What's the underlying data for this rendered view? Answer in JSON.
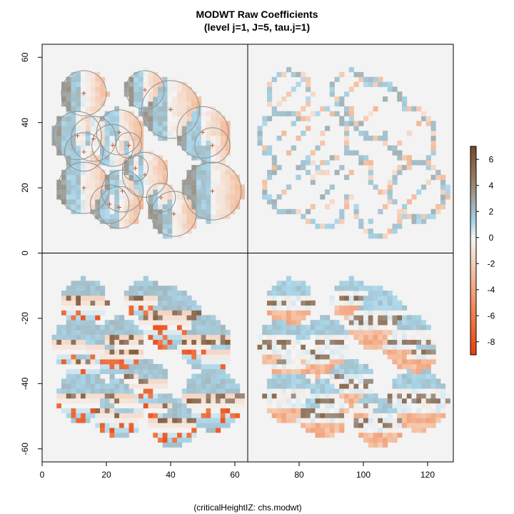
{
  "header": {
    "title": "MODWT Raw Coefficients",
    "subtitle": "(level j=1, J=5, tau.j=1)"
  },
  "footer": {
    "caption": "(criticalHeightIZ: chs.modwt)"
  },
  "chart_data": {
    "type": "heatmap",
    "title": "MODWT Raw Coefficients",
    "subtitle": "(level j=1, J=5, tau.j=1)",
    "caption": "(criticalHeightIZ: chs.modwt)",
    "xlabel": "",
    "ylabel": "",
    "xlim": [
      0,
      128
    ],
    "ylim": [
      -64,
      64
    ],
    "x_ticks": [
      0,
      20,
      40,
      60,
      80,
      100,
      120
    ],
    "y_ticks": [
      60,
      40,
      20,
      0,
      -20,
      -40,
      -60
    ],
    "grid": false,
    "dividers": {
      "x": 64,
      "y": 0
    },
    "quadrants": [
      {
        "position": "top-left",
        "content": "raw coefficient image with tree crown circles and crown centre markers"
      },
      {
        "position": "top-right",
        "content": "sparse diagonal detail coefficients"
      },
      {
        "position": "bottom-left",
        "content": "horizontal-edge dominated coefficients"
      },
      {
        "position": "bottom-right",
        "content": "vertical-edge dominated coefficients"
      }
    ],
    "crowns": [
      {
        "x": 13,
        "y": 49,
        "r": 7
      },
      {
        "x": 32,
        "y": 50,
        "r": 6
      },
      {
        "x": 40,
        "y": 44,
        "r": 9
      },
      {
        "x": 50,
        "y": 37,
        "r": 8
      },
      {
        "x": 53,
        "y": 33,
        "r": 5.5
      },
      {
        "x": 11,
        "y": 36,
        "r": 7.5
      },
      {
        "x": 16,
        "y": 35,
        "r": 7
      },
      {
        "x": 24,
        "y": 37,
        "r": 7
      },
      {
        "x": 22,
        "y": 33,
        "r": 6.5
      },
      {
        "x": 27,
        "y": 33,
        "r": 4
      },
      {
        "x": 13,
        "y": 31,
        "r": 6
      },
      {
        "x": 32,
        "y": 24,
        "r": 7
      },
      {
        "x": 29,
        "y": 26,
        "r": 4
      },
      {
        "x": 13,
        "y": 20,
        "r": 8
      },
      {
        "x": 25,
        "y": 19,
        "r": 6.5
      },
      {
        "x": 21,
        "y": 15,
        "r": 6
      },
      {
        "x": 24,
        "y": 14,
        "r": 6.5
      },
      {
        "x": 37,
        "y": 17,
        "r": 4.5
      },
      {
        "x": 41,
        "y": 12,
        "r": 7
      },
      {
        "x": 53,
        "y": 19,
        "r": 9
      }
    ],
    "colorbar": {
      "ticks": [
        6,
        4,
        2,
        0,
        -2,
        -4,
        -6,
        -8
      ],
      "range": [
        -9,
        7
      ],
      "colors": {
        "max": "#7a4a22",
        "high": "#9c8878",
        "mid_high": "#a8d4e8",
        "zero": "#f5f5f5",
        "mid_low": "#f4c2a4",
        "low": "#f07a48",
        "min": "#e83f0d"
      }
    },
    "colors": {
      "background_panel": "#f3f3f3",
      "crown_circle": "#909090",
      "crown_marker": "#c45a28",
      "frame": "#000000"
    }
  }
}
